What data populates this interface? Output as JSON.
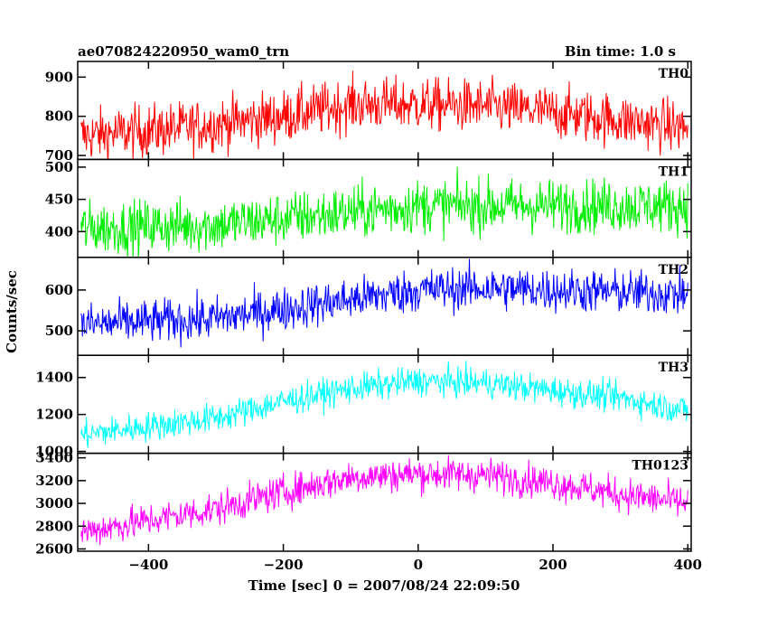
{
  "header": {
    "title": "ae070824220950_wam0_trn",
    "bin_time": "Bin time: 1.0 s"
  },
  "chart_data": {
    "type": "line",
    "xlabel": "Time [sec] 0 = 2007/08/24 22:09:50",
    "ylabel": "Counts/sec",
    "xlim": [
      -505,
      405
    ],
    "xticks": [
      -400,
      -200,
      0,
      200,
      400
    ],
    "x_tick_labels": [
      "−400",
      "−200",
      "0",
      "200",
      "400"
    ],
    "x_range": [
      -500,
      400
    ],
    "x_step": 1,
    "panels": [
      {
        "name": "TH0",
        "color": "#ff0000",
        "ylim": [
          690,
          940
        ],
        "yticks": [
          700,
          800,
          900
        ],
        "y_tick_labels": [
          "700",
          "800",
          "900"
        ],
        "trend": [
          [
            -500,
            750
          ],
          [
            -350,
            770
          ],
          [
            -200,
            800
          ],
          [
            -100,
            830
          ],
          [
            0,
            830
          ],
          [
            100,
            825
          ],
          [
            200,
            810
          ],
          [
            300,
            790
          ],
          [
            400,
            770
          ]
        ],
        "noise": 34
      },
      {
        "name": "TH1",
        "color": "#00ee00",
        "ylim": [
          360,
          512
        ],
        "yticks": [
          400,
          450,
          500
        ],
        "y_tick_labels": [
          "400",
          "450",
          "500"
        ],
        "trend": [
          [
            -500,
            405
          ],
          [
            -300,
            410
          ],
          [
            -150,
            425
          ],
          [
            0,
            440
          ],
          [
            100,
            440
          ],
          [
            200,
            440
          ],
          [
            400,
            440
          ]
        ],
        "noise": 21
      },
      {
        "name": "TH2",
        "color": "#0000ff",
        "ylim": [
          440,
          680
        ],
        "yticks": [
          500,
          600
        ],
        "y_tick_labels": [
          "500",
          "600"
        ],
        "trend": [
          [
            -500,
            515
          ],
          [
            -300,
            530
          ],
          [
            -150,
            565
          ],
          [
            0,
            600
          ],
          [
            100,
            605
          ],
          [
            200,
            600
          ],
          [
            400,
            590
          ]
        ],
        "noise": 27
      },
      {
        "name": "TH3",
        "color": "#00ffff",
        "ylim": [
          990,
          1520
        ],
        "yticks": [
          1000,
          1200,
          1400
        ],
        "y_tick_labels": [
          "1000",
          "1200",
          "1400"
        ],
        "trend": [
          [
            -500,
            1090
          ],
          [
            -300,
            1180
          ],
          [
            -200,
            1270
          ],
          [
            -100,
            1340
          ],
          [
            0,
            1380
          ],
          [
            100,
            1370
          ],
          [
            200,
            1330
          ],
          [
            300,
            1290
          ],
          [
            400,
            1220
          ]
        ],
        "noise": 40
      },
      {
        "name": "TH0123",
        "color": "#ff00ff",
        "ylim": [
          2580,
          3440
        ],
        "yticks": [
          2600,
          2800,
          3000,
          3200,
          3400
        ],
        "y_tick_labels": [
          "2600",
          "2800",
          "3000",
          "3200",
          "3400"
        ],
        "trend": [
          [
            -500,
            2750
          ],
          [
            -400,
            2850
          ],
          [
            -300,
            2950
          ],
          [
            -200,
            3100
          ],
          [
            -100,
            3230
          ],
          [
            0,
            3260
          ],
          [
            100,
            3250
          ],
          [
            200,
            3180
          ],
          [
            300,
            3080
          ],
          [
            400,
            3000
          ]
        ],
        "noise": 75
      }
    ]
  }
}
